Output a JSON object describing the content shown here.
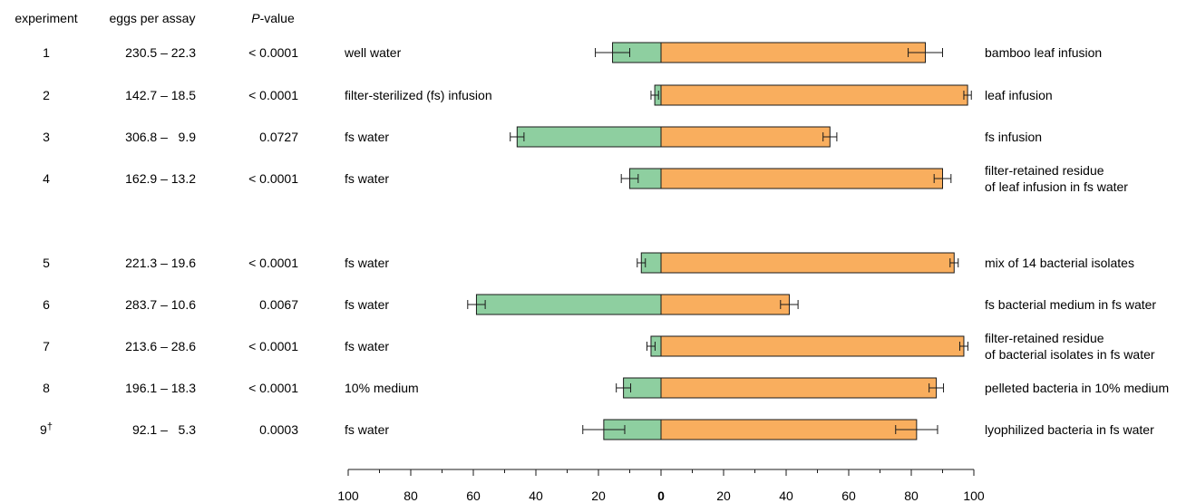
{
  "chart_data": {
    "type": "bar",
    "orientation": "horizontal-diverging",
    "headers": {
      "experiment": "experiment",
      "eggs": "eggs per assay",
      "p_italic": "P",
      "p_rest": "-value"
    },
    "colors": {
      "left_bar": "#8ecfa0",
      "right_bar": "#f9ae5e",
      "stroke": "#1a1a1a"
    },
    "axis": {
      "ticks": [
        "100",
        "80",
        "60",
        "40",
        "20",
        "0",
        "20",
        "40",
        "60",
        "80",
        "100"
      ],
      "tick_values": [
        -100,
        -80,
        -60,
        -40,
        -20,
        0,
        20,
        40,
        60,
        80,
        100
      ],
      "xlim": [
        -100,
        100
      ]
    },
    "rows": [
      {
        "experiment": "1",
        "dagger": "",
        "eggs": "230.5 – 22.3",
        "p": "< 0.0001",
        "left_label": "well water",
        "right_label": [
          "bamboo leaf infusion"
        ],
        "left": 15.5,
        "left_err": 5.5,
        "right": 84.5,
        "right_err": 5.5
      },
      {
        "experiment": "2",
        "dagger": "",
        "eggs": "142.7 – 18.5",
        "p": "< 0.0001",
        "left_label": "filter-sterilized (fs) infusion",
        "right_label": [
          "leaf infusion"
        ],
        "left": 2,
        "left_err": 1.2,
        "right": 98,
        "right_err": 1.2
      },
      {
        "experiment": "3",
        "dagger": "",
        "eggs": "306.8 –   9.9",
        "p": "0.0727",
        "left_label": "fs water",
        "right_label": [
          "fs infusion"
        ],
        "left": 46,
        "left_err": 2.2,
        "right": 54,
        "right_err": 2.2
      },
      {
        "experiment": "4",
        "dagger": "",
        "eggs": "162.9 – 13.2",
        "p": "< 0.0001",
        "left_label": "fs water",
        "right_label": [
          "filter-retained residue",
          "of leaf infusion in fs water"
        ],
        "left": 10,
        "left_err": 2.7,
        "right": 90,
        "right_err": 2.7
      },
      {
        "experiment": "5",
        "dagger": "",
        "eggs": "221.3 – 19.6",
        "p": "< 0.0001",
        "left_label": "fs water",
        "right_label": [
          "mix of 14 bacterial isolates"
        ],
        "left": 6.3,
        "left_err": 1.3,
        "right": 93.7,
        "right_err": 1.3
      },
      {
        "experiment": "6",
        "dagger": "",
        "eggs": "283.7 – 10.6",
        "p": "0.0067",
        "left_label": "fs water",
        "right_label": [
          "fs bacterial medium in fs water"
        ],
        "left": 59,
        "left_err": 2.8,
        "right": 41,
        "right_err": 2.8
      },
      {
        "experiment": "7",
        "dagger": "",
        "eggs": "213.6 – 28.6",
        "p": "< 0.0001",
        "left_label": "fs water",
        "right_label": [
          "filter-retained residue",
          "of bacterial isolates in fs water"
        ],
        "left": 3.2,
        "left_err": 1.3,
        "right": 96.8,
        "right_err": 1.3
      },
      {
        "experiment": "8",
        "dagger": "",
        "eggs": "196.1 – 18.3",
        "p": "< 0.0001",
        "left_label": "10% medium",
        "right_label": [
          "pelleted bacteria in 10% medium"
        ],
        "left": 12,
        "left_err": 2.3,
        "right": 88,
        "right_err": 2.3
      },
      {
        "experiment": "9",
        "dagger": "†",
        "eggs": "92.1 –   5.3",
        "p": "0.0003",
        "left_label": "fs water",
        "right_label": [
          "lyophilized bacteria in fs water"
        ],
        "left": 18.3,
        "left_err": 6.7,
        "right": 81.7,
        "right_err": 6.7
      }
    ]
  }
}
